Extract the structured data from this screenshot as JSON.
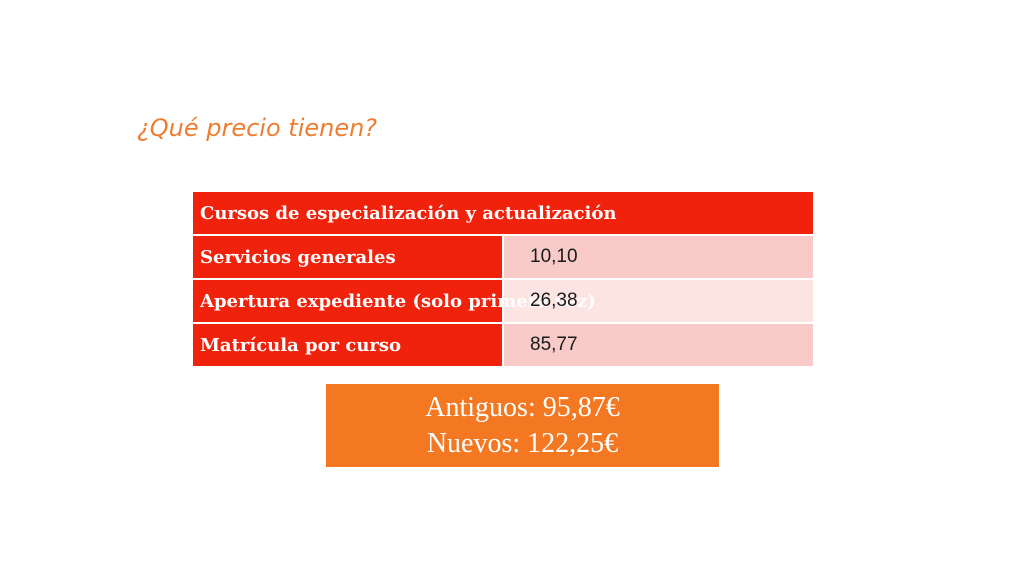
{
  "slide": {
    "title": "¿Qué precio tienen?"
  },
  "table": {
    "header": "Cursos de especialización y actualización",
    "rows": [
      {
        "label": "Servicios generales",
        "value": "10,10"
      },
      {
        "label": "Apertura expediente (solo primera vez)",
        "value": "26,38"
      },
      {
        "label": "Matrícula por curso",
        "value": "85,77"
      }
    ]
  },
  "summary": {
    "line1": "Antiguos: 95,87€",
    "line2": "Nuevos: 122,25€"
  },
  "colors": {
    "title": "#ee7d31",
    "table_header": "#f0220c",
    "value_shade_a": "#f9cbc8",
    "value_shade_b": "#fce4e2",
    "summary_box": "#f47822"
  }
}
